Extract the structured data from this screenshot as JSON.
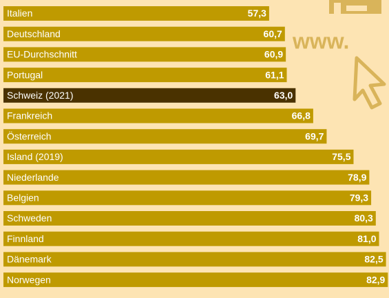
{
  "chart_data": {
    "type": "hbar",
    "categories": [
      "Italien",
      "Deutschland",
      "EU-Durchschnitt",
      "Portugal",
      "Schweiz (2021)",
      "Frankreich",
      "Österreich",
      "Island (2019)",
      "Niederlande",
      "Belgien",
      "Schweden",
      "Finnland",
      "Dänemark",
      "Norwegen"
    ],
    "values": [
      57.3,
      60.7,
      60.9,
      61.1,
      63.0,
      66.8,
      69.7,
      75.5,
      78.9,
      79.3,
      80.3,
      81.0,
      82.5,
      82.9
    ],
    "value_labels": [
      "57,3",
      "60,7",
      "60,9",
      "61,1",
      "63,0",
      "66,8",
      "69,7",
      "75,5",
      "78,9",
      "79,3",
      "80,3",
      "81,0",
      "82,5",
      "82,9"
    ],
    "colors": [
      "#bf9a00",
      "#bf9a00",
      "#bf9a00",
      "#bf9a00",
      "#4a3200",
      "#bf9a00",
      "#bf9a00",
      "#bf9a00",
      "#bf9a00",
      "#bf9a00",
      "#bf9a00",
      "#bf9a00",
      "#bf9a00",
      "#bf9a00"
    ],
    "xlim": [
      0,
      83
    ]
  },
  "decoration": {
    "text": "www."
  }
}
